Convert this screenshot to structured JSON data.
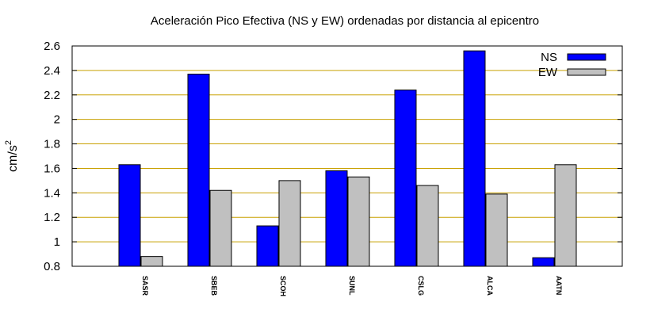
{
  "chart_data": {
    "type": "bar",
    "title": "Aceleración Pico Efectiva (NS y EW) ordenadas por distancia al epicentro",
    "ylabel": "cm/s",
    "ylabel_exponent": "2",
    "xlabel": "",
    "ylim": [
      0.8,
      2.6
    ],
    "yticks": [
      "0.8",
      "1",
      "1.2",
      "1.4",
      "1.6",
      "1.8",
      "2",
      "2.2",
      "2.4",
      "2.6"
    ],
    "grid": true,
    "legend_position": "top-right",
    "categories": [
      "SASR",
      "SBEB",
      "SCOH",
      "SUNL",
      "CSLG",
      "ALCA",
      "AATN"
    ],
    "series": [
      {
        "name": "NS",
        "color": "#0000ff",
        "values": [
          1.63,
          2.37,
          1.13,
          1.58,
          2.24,
          2.56,
          0.87
        ]
      },
      {
        "name": "EW",
        "color": "#c0c0c0",
        "values": [
          0.88,
          1.42,
          1.5,
          1.53,
          1.46,
          1.39,
          1.63
        ]
      }
    ],
    "grid_color": "#c8a000"
  }
}
